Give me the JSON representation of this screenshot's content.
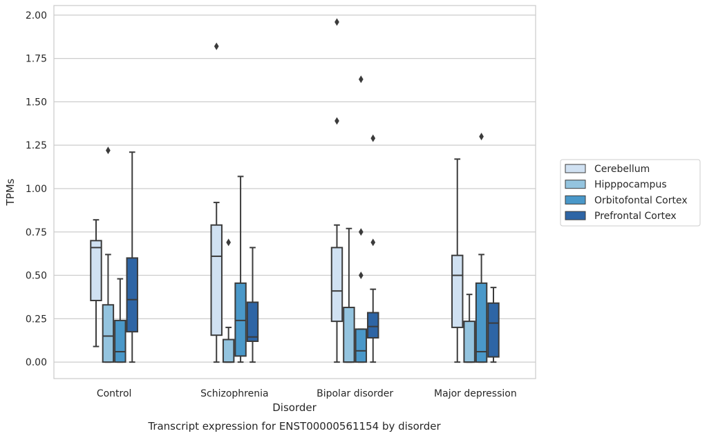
{
  "chart_data": {
    "type": "box",
    "title": "Transcript expression for ENST00000561154 by disorder",
    "xlabel": "Disorder",
    "ylabel": "TPMs",
    "ylim": [
      -0.095,
      2.055
    ],
    "yticks": [
      0.0,
      0.25,
      0.5,
      0.75,
      1.0,
      1.25,
      1.5,
      1.75,
      2.0
    ],
    "ytick_labels": [
      "0.00",
      "0.25",
      "0.50",
      "0.75",
      "1.00",
      "1.25",
      "1.50",
      "1.75",
      "2.00"
    ],
    "grid": "horizontal",
    "legend_position": "right",
    "categories": [
      "Control",
      "Schizophrenia",
      "Bipolar disorder",
      "Major depression"
    ],
    "series": [
      {
        "name": "Cerebellum",
        "color": "#d0e1f2",
        "boxes": [
          {
            "whisker_low": 0.09,
            "q1": 0.355,
            "median": 0.66,
            "q3": 0.7,
            "whisker_high": 0.82,
            "outliers": []
          },
          {
            "whisker_low": 0.0,
            "q1": 0.155,
            "median": 0.61,
            "q3": 0.79,
            "whisker_high": 0.92,
            "outliers": [
              1.82
            ]
          },
          {
            "whisker_low": 0.0,
            "q1": 0.235,
            "median": 0.41,
            "q3": 0.66,
            "whisker_high": 0.79,
            "outliers": [
              1.39,
              1.96
            ]
          },
          {
            "whisker_low": 0.0,
            "q1": 0.2,
            "median": 0.5,
            "q3": 0.615,
            "whisker_high": 1.17,
            "outliers": []
          }
        ]
      },
      {
        "name": "Hipppocampus",
        "color": "#94c4df",
        "boxes": [
          {
            "whisker_low": 0.0,
            "q1": 0.0,
            "median": 0.15,
            "q3": 0.33,
            "whisker_high": 0.62,
            "outliers": [
              1.22
            ]
          },
          {
            "whisker_low": 0.0,
            "q1": 0.0,
            "median": 0.0,
            "q3": 0.13,
            "whisker_high": 0.2,
            "outliers": [
              0.69
            ]
          },
          {
            "whisker_low": 0.0,
            "q1": 0.0,
            "median": 0.0,
            "q3": 0.315,
            "whisker_high": 0.77,
            "outliers": []
          },
          {
            "whisker_low": 0.0,
            "q1": 0.0,
            "median": 0.0,
            "q3": 0.235,
            "whisker_high": 0.39,
            "outliers": []
          }
        ]
      },
      {
        "name": "Orbitofontal Cortex",
        "color": "#4a98c9",
        "boxes": [
          {
            "whisker_low": 0.0,
            "q1": 0.0,
            "median": 0.06,
            "q3": 0.24,
            "whisker_high": 0.48,
            "outliers": []
          },
          {
            "whisker_low": 0.0,
            "q1": 0.035,
            "median": 0.24,
            "q3": 0.455,
            "whisker_high": 1.07,
            "outliers": []
          },
          {
            "whisker_low": 0.0,
            "q1": 0.0,
            "median": 0.065,
            "q3": 0.19,
            "whisker_high": 0.19,
            "outliers": [
              0.5,
              0.75,
              1.63
            ]
          },
          {
            "whisker_low": 0.0,
            "q1": 0.0,
            "median": 0.06,
            "q3": 0.455,
            "whisker_high": 0.62,
            "outliers": [
              1.3
            ]
          }
        ]
      },
      {
        "name": "Prefrontal Cortex",
        "color": "#2e65a5",
        "boxes": [
          {
            "whisker_low": 0.0,
            "q1": 0.175,
            "median": 0.36,
            "q3": 0.6,
            "whisker_high": 1.21,
            "outliers": []
          },
          {
            "whisker_low": 0.0,
            "q1": 0.12,
            "median": 0.145,
            "q3": 0.345,
            "whisker_high": 0.66,
            "outliers": []
          },
          {
            "whisker_low": 0.0,
            "q1": 0.14,
            "median": 0.205,
            "q3": 0.285,
            "whisker_high": 0.42,
            "outliers": [
              0.69,
              1.29
            ]
          },
          {
            "whisker_low": 0.0,
            "q1": 0.03,
            "median": 0.225,
            "q3": 0.34,
            "whisker_high": 0.43,
            "outliers": []
          }
        ]
      }
    ]
  }
}
